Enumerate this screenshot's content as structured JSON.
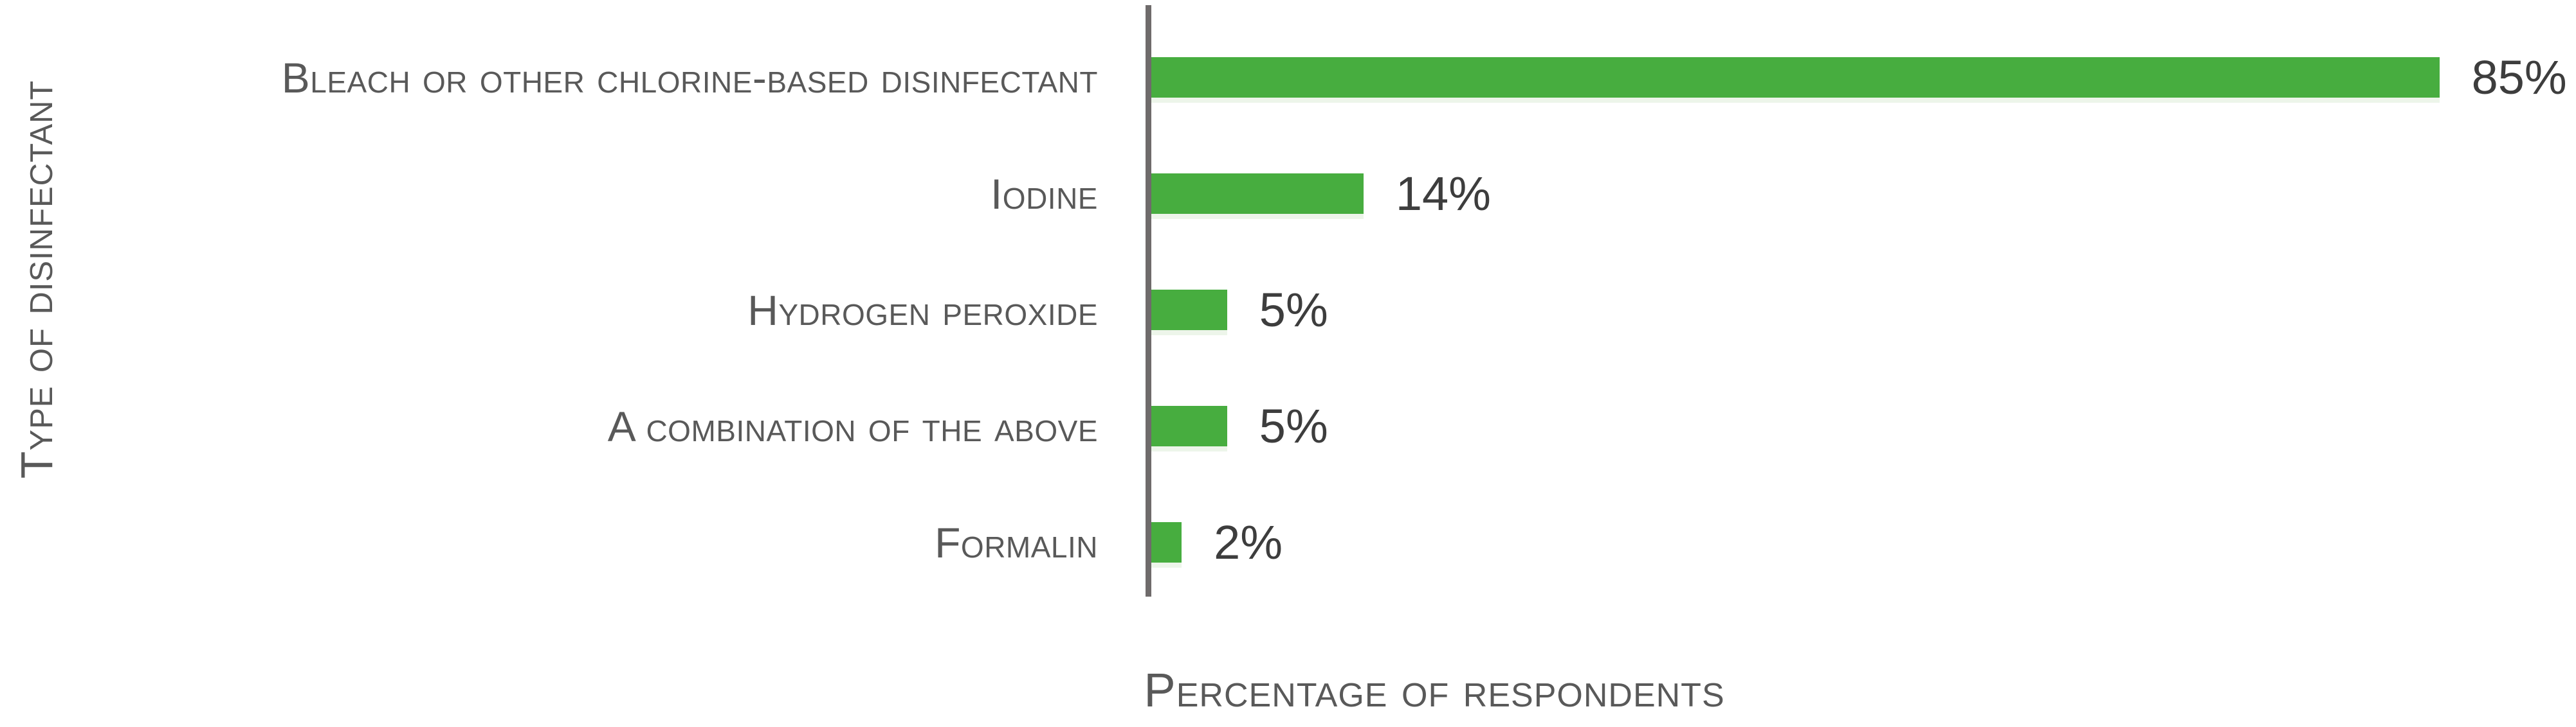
{
  "chart_data": {
    "type": "bar",
    "orientation": "horizontal",
    "title": "",
    "categories": [
      "Bleach or other chlorine-based disinfectant",
      "Iodine",
      "Hydrogen peroxide",
      "A combination of the above",
      "Formalin"
    ],
    "values": [
      85,
      14,
      5,
      5,
      2
    ],
    "value_labels": [
      "85%",
      "14%",
      "5%",
      "5%",
      "2%"
    ],
    "xlabel": "Percentage of respondents",
    "ylabel": "Type of disinfectant",
    "xlim": [
      0,
      94
    ],
    "x_axis_ticks_visible": false,
    "grid": false,
    "legend": false,
    "colors": {
      "bar": "#47ad3f",
      "axis_line": "#6f6b6b",
      "category_label": "#595959",
      "value_label": "#3d3d3d"
    }
  }
}
